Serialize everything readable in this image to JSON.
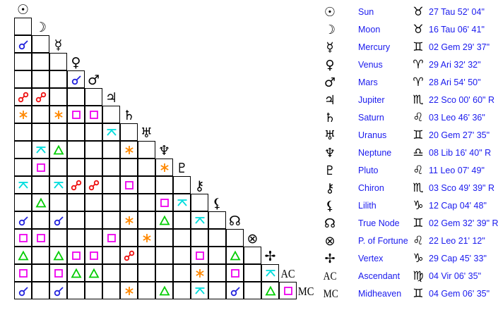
{
  "colors": {
    "conjunction": "#2222dd",
    "opposition": "#ee1111",
    "trine": "#00cc00",
    "square": "#ee00ee",
    "sextile": "#ff8800",
    "quincunx": "#00dddd"
  },
  "bodies": [
    {
      "icon": "sun-icon",
      "glyph": "☉",
      "name": "Sun",
      "sign_icon": "taurus-icon",
      "sign": "♉",
      "position": "27 Tau 52' 04\""
    },
    {
      "icon": "moon-icon",
      "glyph": "☽",
      "name": "Moon",
      "sign_icon": "taurus-icon",
      "sign": "♉",
      "position": "16 Tau 06' 41\""
    },
    {
      "icon": "mercury-icon",
      "glyph": "☿",
      "name": "Mercury",
      "sign_icon": "gemini-icon",
      "sign": "♊",
      "position": "02 Gem 29' 37\""
    },
    {
      "icon": "venus-icon",
      "glyph": "♀",
      "name": "Venus",
      "sign_icon": "aries-icon",
      "sign": "♈",
      "position": "29 Ari 32' 32\""
    },
    {
      "icon": "mars-icon",
      "glyph": "♂",
      "name": "Mars",
      "sign_icon": "aries-icon",
      "sign": "♈",
      "position": "28 Ari 54' 50\""
    },
    {
      "icon": "jupiter-icon",
      "glyph": "♃",
      "name": "Jupiter",
      "sign_icon": "scorpio-icon",
      "sign": "♏",
      "position": "22 Sco 00' 60\" R"
    },
    {
      "icon": "saturn-icon",
      "glyph": "♄",
      "name": "Saturn",
      "sign_icon": "leo-icon",
      "sign": "♌",
      "position": "03 Leo 46' 36\""
    },
    {
      "icon": "uranus-icon",
      "glyph": "♅",
      "name": "Uranus",
      "sign_icon": "gemini-icon",
      "sign": "♊",
      "position": "20 Gem 27' 35\""
    },
    {
      "icon": "neptune-icon",
      "glyph": "♆",
      "name": "Neptune",
      "sign_icon": "libra-icon",
      "sign": "♎",
      "position": "08 Lib 16' 40\" R"
    },
    {
      "icon": "pluto-icon",
      "glyph": "♇",
      "name": "Pluto",
      "sign_icon": "leo-icon",
      "sign": "♌",
      "position": "11 Leo 07' 49\""
    },
    {
      "icon": "chiron-icon",
      "glyph": "⚷",
      "name": "Chiron",
      "sign_icon": "scorpio-icon",
      "sign": "♏",
      "position": "03 Sco 49' 39\" R"
    },
    {
      "icon": "lilith-icon",
      "glyph": "⚸",
      "name": "Lilith",
      "sign_icon": "capricorn-icon",
      "sign": "♑",
      "position": "12 Cap 04' 48\""
    },
    {
      "icon": "true-node-icon",
      "glyph": "☊",
      "name": "True Node",
      "sign_icon": "gemini-icon",
      "sign": "♊",
      "position": "02 Gem 32' 39\" R"
    },
    {
      "icon": "part-of-fortune-icon",
      "glyph": "⊗",
      "name": "P. of Fortune",
      "sign_icon": "leo-icon",
      "sign": "♌",
      "position": "22 Leo 21' 12\""
    },
    {
      "icon": "vertex-icon",
      "glyph": "✢",
      "name": "Vertex",
      "sign_icon": "capricorn-icon",
      "sign": "♑",
      "position": "29 Cap 45' 33\""
    },
    {
      "icon": "ascendant-icon",
      "glyph": "AC",
      "name": "Ascendant",
      "sign_icon": "virgo-icon",
      "sign": "♍",
      "position": "04 Vir 06' 35\""
    },
    {
      "icon": "midheaven-icon",
      "glyph": "MC",
      "name": "Midheaven",
      "sign_icon": "gemini-icon",
      "sign": "♊",
      "position": "04 Gem 06' 35\""
    }
  ],
  "aspects": [
    [
      2,
      0,
      "conjunction"
    ],
    [
      4,
      3,
      "conjunction"
    ],
    [
      5,
      0,
      "opposition"
    ],
    [
      5,
      1,
      "opposition"
    ],
    [
      6,
      0,
      "sextile"
    ],
    [
      6,
      2,
      "sextile"
    ],
    [
      6,
      3,
      "square"
    ],
    [
      6,
      4,
      "square"
    ],
    [
      7,
      5,
      "quincunx"
    ],
    [
      8,
      1,
      "quincunx"
    ],
    [
      8,
      2,
      "trine"
    ],
    [
      8,
      6,
      "sextile"
    ],
    [
      9,
      1,
      "square"
    ],
    [
      9,
      8,
      "sextile"
    ],
    [
      10,
      0,
      "quincunx"
    ],
    [
      10,
      2,
      "quincunx"
    ],
    [
      10,
      3,
      "opposition"
    ],
    [
      10,
      4,
      "opposition"
    ],
    [
      10,
      6,
      "square"
    ],
    [
      11,
      1,
      "trine"
    ],
    [
      11,
      8,
      "square"
    ],
    [
      11,
      9,
      "quincunx"
    ],
    [
      12,
      0,
      "conjunction"
    ],
    [
      12,
      2,
      "conjunction"
    ],
    [
      12,
      6,
      "sextile"
    ],
    [
      12,
      8,
      "trine"
    ],
    [
      12,
      10,
      "quincunx"
    ],
    [
      13,
      0,
      "square"
    ],
    [
      13,
      1,
      "square"
    ],
    [
      13,
      5,
      "square"
    ],
    [
      13,
      7,
      "sextile"
    ],
    [
      14,
      0,
      "trine"
    ],
    [
      14,
      2,
      "trine"
    ],
    [
      14,
      3,
      "square"
    ],
    [
      14,
      4,
      "square"
    ],
    [
      14,
      6,
      "opposition"
    ],
    [
      14,
      10,
      "square"
    ],
    [
      14,
      12,
      "trine"
    ],
    [
      15,
      0,
      "square"
    ],
    [
      15,
      2,
      "square"
    ],
    [
      15,
      3,
      "trine"
    ],
    [
      15,
      4,
      "trine"
    ],
    [
      15,
      10,
      "sextile"
    ],
    [
      15,
      12,
      "square"
    ],
    [
      15,
      14,
      "quincunx"
    ],
    [
      16,
      0,
      "conjunction"
    ],
    [
      16,
      2,
      "conjunction"
    ],
    [
      16,
      6,
      "sextile"
    ],
    [
      16,
      8,
      "trine"
    ],
    [
      16,
      10,
      "quincunx"
    ],
    [
      16,
      12,
      "conjunction"
    ],
    [
      16,
      14,
      "trine"
    ],
    [
      16,
      15,
      "square"
    ]
  ]
}
